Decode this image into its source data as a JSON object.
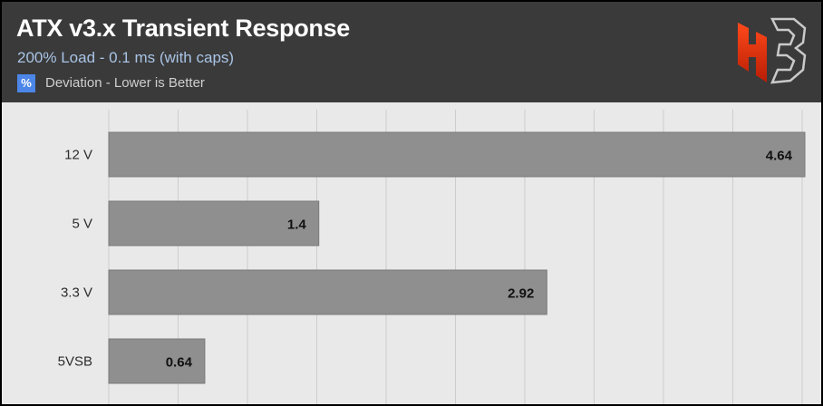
{
  "chart_data": {
    "type": "bar",
    "orientation": "horizontal",
    "title": "ATX v3.x Transient Response",
    "subtitle": "200% Load - 0.1 ms (with caps)",
    "legend": {
      "symbol": "%",
      "label": "Deviation - Lower is Better"
    },
    "categories": [
      "12 V",
      "5 V",
      "3.3 V",
      "5VSB"
    ],
    "values": [
      4.64,
      1.4,
      2.92,
      0.64
    ],
    "value_labels": [
      "4.64",
      "1.4",
      "2.92",
      "0.64"
    ],
    "xlim": [
      0,
      4.64
    ],
    "grid": true,
    "colors": {
      "bar": "#8f8f8f",
      "legend_swatch": "#4c86e8",
      "header": "#3a3a3a",
      "background": "#e9e9e9"
    }
  },
  "logo": {
    "name": "hb-logo-icon"
  }
}
